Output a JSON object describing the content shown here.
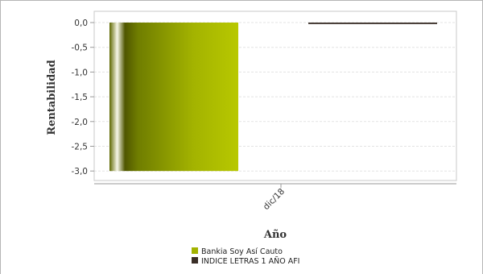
{
  "chart_data": {
    "type": "bar",
    "categories": [
      "dic/18"
    ],
    "series": [
      {
        "name": "Bankia Soy Así Cauto",
        "values": [
          -3.0
        ],
        "color": "#a3b300"
      },
      {
        "name": "INDICE LETRAS 1 AÑO AFI",
        "values": [
          -0.03
        ],
        "color": "#3a2e27"
      }
    ],
    "xlabel": "Año",
    "ylabel": "Rentabilidad",
    "ylim": [
      -3.1,
      0.0
    ],
    "yticks": [
      0.0,
      -0.5,
      -1.0,
      -1.5,
      -2.0,
      -2.5,
      -3.0
    ],
    "ytick_labels": [
      "0,0",
      "-0,5",
      "-1,0",
      "-1,5",
      "-2,0",
      "-2,5",
      "-3,0"
    ],
    "grid": true,
    "legend_position": "bottom"
  }
}
